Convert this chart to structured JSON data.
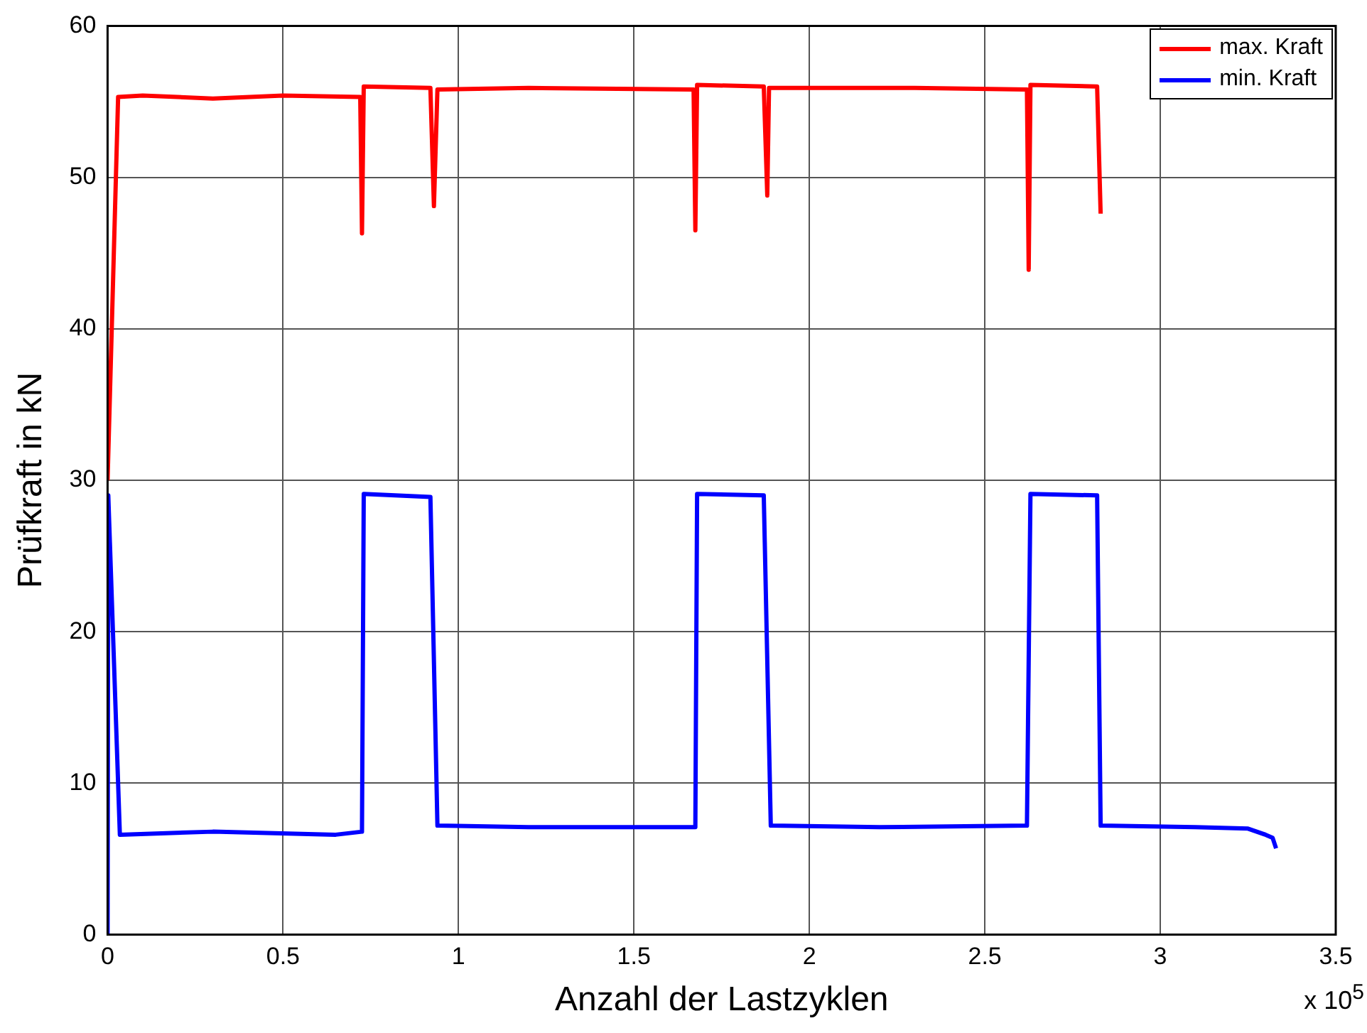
{
  "chart_data": {
    "type": "line",
    "xlabel": "Anzahl der Lastzyklen",
    "ylabel": "Prüfkraft in kN",
    "annotations": [
      "x 10$^{5}$"
    ],
    "xlim": [
      0,
      3.5
    ],
    "xticks": [
      0,
      0.5,
      1,
      1.5,
      2,
      2.5,
      3,
      3.5
    ],
    "ylim": [
      0,
      60
    ],
    "yticks": [
      0,
      10,
      20,
      30,
      40,
      50,
      60
    ],
    "grid": true,
    "legend": "top right",
    "marker": "none",
    "line_style": "solid",
    "series": [
      {
        "name": "max. Kraft",
        "color": "#ff0000",
        "x": [
          0,
          0.03,
          0.1,
          0.3,
          0.5,
          0.72,
          0.725,
          0.73,
          0.92,
          0.93,
          0.94,
          1.2,
          1.67,
          1.675,
          1.68,
          1.87,
          1.88,
          1.885,
          2.3,
          2.62,
          2.625,
          2.63,
          2.82,
          2.83
        ],
        "values": [
          30,
          55.3,
          55.4,
          55.2,
          55.4,
          55.3,
          46.3,
          56.0,
          55.9,
          48.1,
          55.8,
          55.9,
          55.8,
          46.5,
          56.1,
          56.0,
          48.8,
          55.9,
          55.9,
          55.8,
          43.9,
          56.1,
          56.0,
          47.6
        ]
      },
      {
        "name": "min. Kraft",
        "color": "#0000ff",
        "x": [
          0,
          0.002,
          0.035,
          0.3,
          0.65,
          0.725,
          0.73,
          0.92,
          0.94,
          1.2,
          1.675,
          1.68,
          1.87,
          1.89,
          2.2,
          2.62,
          2.63,
          2.82,
          2.83,
          3.1,
          3.25,
          3.3,
          3.32,
          3.33
        ],
        "values": [
          0,
          29,
          6.6,
          6.8,
          6.6,
          6.8,
          29.1,
          28.9,
          7.2,
          7.1,
          7.1,
          29.1,
          29.0,
          7.2,
          7.1,
          7.2,
          29.1,
          29.0,
          7.2,
          7.1,
          7.0,
          6.6,
          6.4,
          5.7
        ]
      }
    ]
  }
}
